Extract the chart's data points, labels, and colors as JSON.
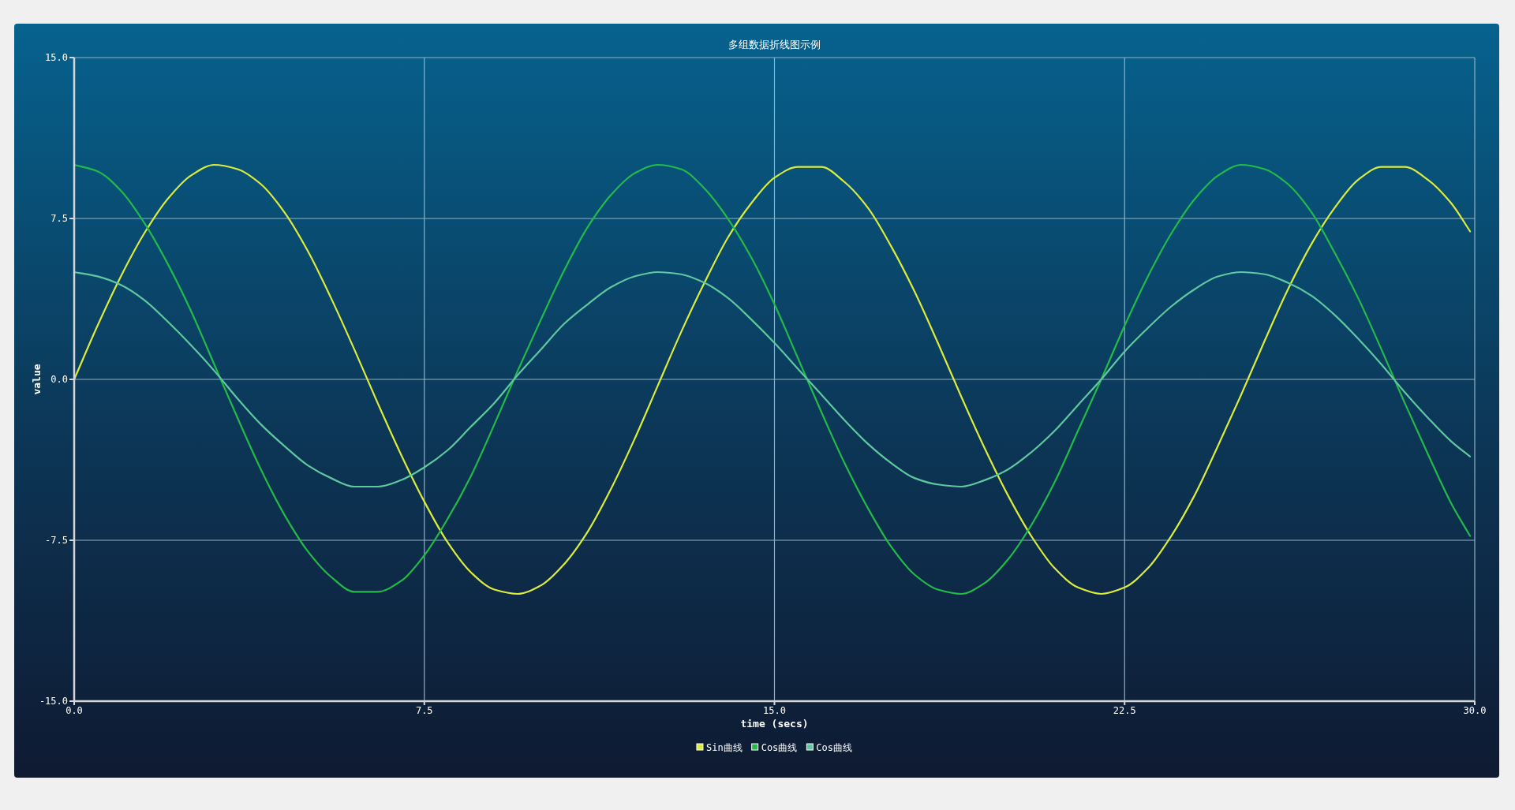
{
  "chart_data": {
    "type": "line",
    "title": "多组数据折线图示例",
    "xlabel": "time (secs)",
    "ylabel": "value",
    "x": [
      0,
      0.5,
      1,
      1.5,
      2,
      2.5,
      3,
      3.5,
      4,
      4.5,
      5,
      5.5,
      6,
      6.5,
      7,
      7.5,
      8,
      8.5,
      9,
      9.5,
      10,
      10.5,
      11,
      11.5,
      12,
      12.5,
      13,
      13.5,
      14,
      14.5,
      15,
      15.5,
      16,
      16.5,
      17,
      17.5,
      18,
      18.5,
      19,
      19.5,
      20,
      20.5,
      21,
      21.5,
      22,
      22.5,
      23,
      23.5,
      24,
      24.5,
      25,
      25.5,
      26,
      26.5,
      27,
      27.5,
      28,
      28.5,
      29,
      29.5,
      29.9
    ],
    "series": [
      {
        "name": "Sin曲线",
        "color": "#dcec3c",
        "values": [
          0,
          2.5,
          4.8,
          6.8,
          8.4,
          9.5,
          10.0,
          9.8,
          9.1,
          7.8,
          6.0,
          3.8,
          1.4,
          -1.1,
          -3.5,
          -5.7,
          -7.6,
          -9.0,
          -9.8,
          -10.0,
          -9.6,
          -8.6,
          -7.1,
          -5.1,
          -2.8,
          -0.3,
          2.2,
          4.5,
          6.6,
          8.2,
          9.4,
          9.9,
          9.9,
          9.2,
          8.0,
          6.2,
          4.1,
          1.7,
          -0.8,
          -3.2,
          -5.4,
          -7.3,
          -8.8,
          -9.7,
          -10.0,
          -9.7,
          -8.8,
          -7.3,
          -5.4,
          -3.1,
          -0.7,
          1.8,
          4.2,
          6.3,
          8.0,
          9.3,
          9.9,
          9.9,
          9.3,
          8.2,
          6.9
        ]
      },
      {
        "name": "Cos曲线",
        "color": "#22bb48",
        "values": [
          10.0,
          9.7,
          8.8,
          7.3,
          5.4,
          3.2,
          0.7,
          -1.8,
          -4.2,
          -6.3,
          -8.0,
          -9.2,
          -9.9,
          -9.9,
          -9.4,
          -8.2,
          -6.5,
          -4.5,
          -2.1,
          0.4,
          2.8,
          5.1,
          7.1,
          8.6,
          9.6,
          10.0,
          9.8,
          8.9,
          7.5,
          5.7,
          3.5,
          1.0,
          -1.5,
          -3.9,
          -6.0,
          -7.8,
          -9.1,
          -9.8,
          -10.0,
          -9.5,
          -8.4,
          -6.8,
          -4.8,
          -2.4,
          0.0,
          2.5,
          4.8,
          6.8,
          8.4,
          9.5,
          10.0,
          9.8,
          9.1,
          7.8,
          5.9,
          3.8,
          1.4,
          -1.1,
          -3.5,
          -5.8,
          -7.3
        ]
      },
      {
        "name": "Cos曲线",
        "color": "#5fc8a0",
        "values": [
          5.0,
          4.8,
          4.4,
          3.7,
          2.7,
          1.6,
          0.4,
          -0.9,
          -2.1,
          -3.1,
          -4.0,
          -4.6,
          -5.0,
          -5.0,
          -4.7,
          -4.1,
          -3.3,
          -2.2,
          -1.1,
          0.2,
          1.4,
          2.6,
          3.5,
          4.3,
          4.8,
          5.0,
          4.9,
          4.5,
          3.8,
          2.8,
          1.7,
          0.5,
          -0.7,
          -1.9,
          -3.0,
          -3.9,
          -4.6,
          -4.9,
          -5.0,
          -4.7,
          -4.2,
          -3.4,
          -2.4,
          -1.2,
          0.0,
          1.3,
          2.4,
          3.4,
          4.2,
          4.8,
          5.0,
          4.9,
          4.5,
          3.9,
          3.0,
          1.9,
          0.7,
          -0.6,
          -1.8,
          -2.9,
          -3.6
        ]
      }
    ],
    "xlim": [
      0,
      30
    ],
    "ylim": [
      -15,
      15
    ],
    "xticks": [
      {
        "value": 0,
        "label": "0.0"
      },
      7.5,
      {
        "value": 15,
        "label": "15.0"
      },
      22.5,
      {
        "value": 30,
        "label": "30.0"
      }
    ],
    "yticks": [
      {
        "value": -15,
        "label": "-15.0"
      },
      -7.5,
      {
        "value": 0,
        "label": "0.0"
      },
      7.5,
      {
        "value": 15,
        "label": "15.0"
      }
    ],
    "grid": true,
    "legend": "bottom",
    "line_style": "solid"
  }
}
